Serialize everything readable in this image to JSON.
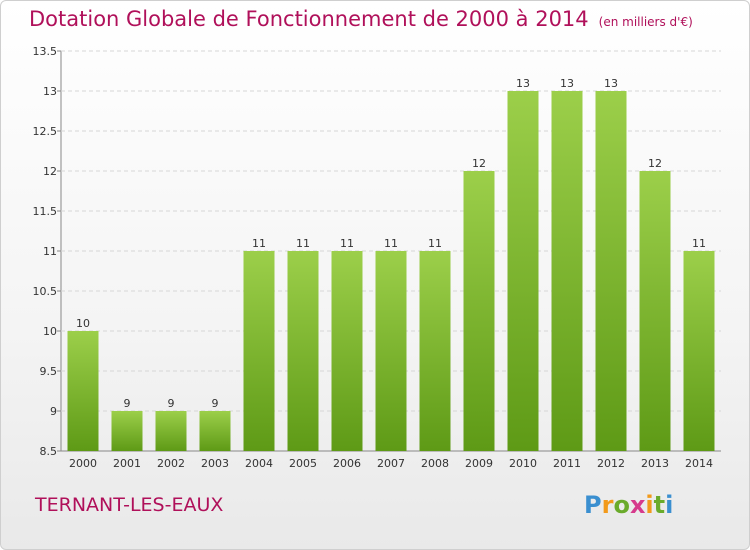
{
  "header": {
    "title": "Dotation Globale de Fonctionnement de 2000 à 2014",
    "subtitle": "(en milliers d'€)"
  },
  "footer": {
    "commune": "TERNANT-LES-EAUX",
    "logo_text": "Proxiti"
  },
  "colors": {
    "title": "#b0105a",
    "bar_top": "#9ccf4a",
    "bar_bottom": "#5e9a16"
  },
  "chart_data": {
    "type": "bar",
    "title": "Dotation Globale de Fonctionnement de 2000 à 2014",
    "xlabel": "",
    "ylabel": "",
    "categories": [
      "2000",
      "2001",
      "2002",
      "2003",
      "2004",
      "2005",
      "2006",
      "2007",
      "2008",
      "2009",
      "2010",
      "2011",
      "2012",
      "2013",
      "2014"
    ],
    "values": [
      10,
      9,
      9,
      9,
      11,
      11,
      11,
      11,
      11,
      12,
      13,
      13,
      13,
      12,
      11
    ],
    "ylim": [
      8.5,
      13.5
    ],
    "yticks": [
      "8.5",
      "9",
      "9.5",
      "10",
      "10.5",
      "11",
      "11.5",
      "12",
      "12.5",
      "13",
      "13.5"
    ],
    "grid": true
  }
}
